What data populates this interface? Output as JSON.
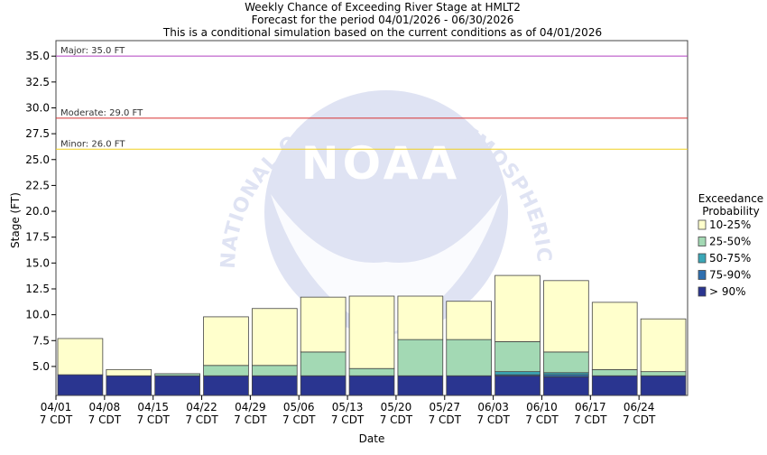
{
  "chart_data": {
    "type": "bar",
    "title_lines": [
      "Weekly Chance of Exceeding River Stage at HMLT2",
      "Forecast for the period 04/01/2026 - 06/30/2026",
      "This is a conditional simulation based on the current conditions as of 04/01/2026"
    ],
    "xlabel": "Date",
    "ylabel": "Stage (FT)",
    "ylim": [
      2.2,
      36.5
    ],
    "yticks": [
      5.0,
      7.5,
      10.0,
      12.5,
      15.0,
      17.5,
      20.0,
      22.5,
      25.0,
      27.5,
      30.0,
      32.5,
      35.0
    ],
    "ytick_labels": [
      "5.0",
      "7.5",
      "10.0",
      "12.5",
      "15.0",
      "17.5",
      "20.0",
      "22.5",
      "25.0",
      "27.5",
      "30.0",
      "32.5",
      "35.0"
    ],
    "categories": [
      "04/01",
      "04/08",
      "04/15",
      "04/22",
      "04/29",
      "05/06",
      "05/13",
      "05/20",
      "05/27",
      "06/03",
      "06/10",
      "06/17",
      "06/24"
    ],
    "x_sublabel": "7 CDT",
    "series": [
      {
        "name": "> 90%",
        "color": "#2a3590",
        "values": [
          4.2,
          4.1,
          4.1,
          4.1,
          4.1,
          4.1,
          4.1,
          4.1,
          4.1,
          4.1,
          4.0,
          4.1,
          4.1
        ]
      },
      {
        "name": "75-90%",
        "color": "#2e6fb0",
        "values": [
          4.2,
          4.1,
          4.1,
          4.1,
          4.1,
          4.1,
          4.1,
          4.1,
          4.1,
          4.2,
          4.2,
          4.1,
          4.1
        ]
      },
      {
        "name": "50-75%",
        "color": "#3aa7b7",
        "values": [
          4.2,
          4.1,
          4.1,
          4.1,
          4.1,
          4.1,
          4.1,
          4.1,
          4.1,
          4.5,
          4.4,
          4.1,
          4.1
        ]
      },
      {
        "name": "25-50%",
        "color": "#a3d9b4",
        "values": [
          4.2,
          4.1,
          4.3,
          5.1,
          5.1,
          6.4,
          4.8,
          7.6,
          7.6,
          7.4,
          6.4,
          4.7,
          4.5
        ]
      },
      {
        "name": "10-25%",
        "color": "#ffffcc",
        "values": [
          7.7,
          4.7,
          4.3,
          9.8,
          10.6,
          11.7,
          11.8,
          11.8,
          11.3,
          13.8,
          13.3,
          11.2,
          9.6
        ]
      }
    ],
    "legend_title_lines": [
      "Exceedance",
      "Probability"
    ],
    "legend_placement": "right",
    "thresholds": [
      {
        "label": "Major: 35.0 FT",
        "value": 35.0,
        "color": "#b040c0"
      },
      {
        "label": "Moderate: 29.0 FT",
        "value": 29.0,
        "color": "#d83030"
      },
      {
        "label": "Minor: 26.0 FT",
        "value": 26.0,
        "color": "#f0d020"
      }
    ],
    "grid": false,
    "watermark": {
      "text": "NOAA",
      "ring_text": "NATIONAL OCEANIC AND ATMOSPHERIC ADMINISTRATION"
    }
  }
}
